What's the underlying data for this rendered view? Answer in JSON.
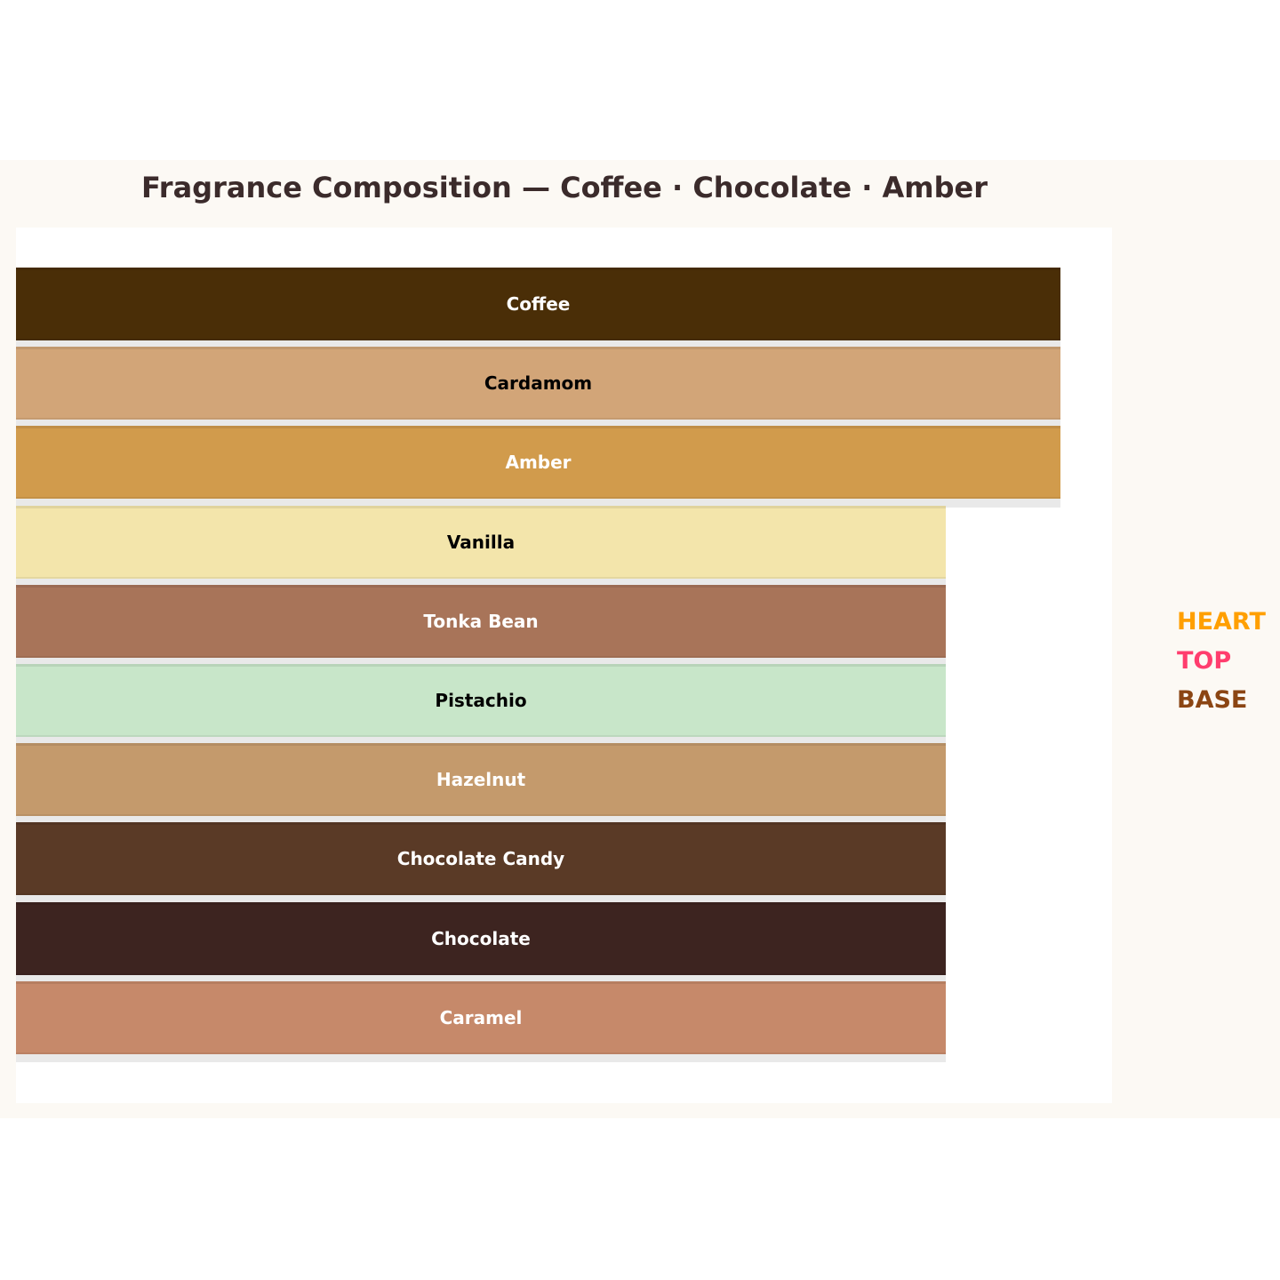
{
  "chart_data": {
    "type": "bar",
    "orientation": "horizontal",
    "title": "Fragrance Composition — Coffee · Chocolate · Amber",
    "bars": [
      {
        "label": "Coffee",
        "color": "#4a2e07",
        "text_color": "#ffffff",
        "relative_length": 1.0
      },
      {
        "label": "Cardamom",
        "color": "#d2a578",
        "text_color": "#000000",
        "relative_length": 1.0
      },
      {
        "label": "Amber",
        "color": "#d19b4c",
        "text_color": "#ffffff",
        "relative_length": 1.0
      },
      {
        "label": "Vanilla",
        "color": "#f3e5ab",
        "text_color": "#000000",
        "relative_length": 0.89
      },
      {
        "label": "Tonka Bean",
        "color": "#a87459",
        "text_color": "#ffffff",
        "relative_length": 0.89
      },
      {
        "label": "Pistachio",
        "color": "#c8e6c9",
        "text_color": "#000000",
        "relative_length": 0.89
      },
      {
        "label": "Hazelnut",
        "color": "#c49a6c",
        "text_color": "#ffffff",
        "relative_length": 0.89
      },
      {
        "label": "Chocolate Candy",
        "color": "#5a3a26",
        "text_color": "#ffffff",
        "relative_length": 0.89
      },
      {
        "label": "Chocolate",
        "color": "#3d2420",
        "text_color": "#ffffff",
        "relative_length": 0.89
      },
      {
        "label": "Caramel",
        "color": "#c6896a",
        "text_color": "#ffffff",
        "relative_length": 0.89
      }
    ],
    "legend": {
      "placement": "right",
      "entries": [
        {
          "label": "HEART",
          "color": "#ff9f00"
        },
        {
          "label": "TOP",
          "color": "#ff3d6e"
        },
        {
          "label": "BASE",
          "color": "#8b4513"
        }
      ]
    }
  }
}
